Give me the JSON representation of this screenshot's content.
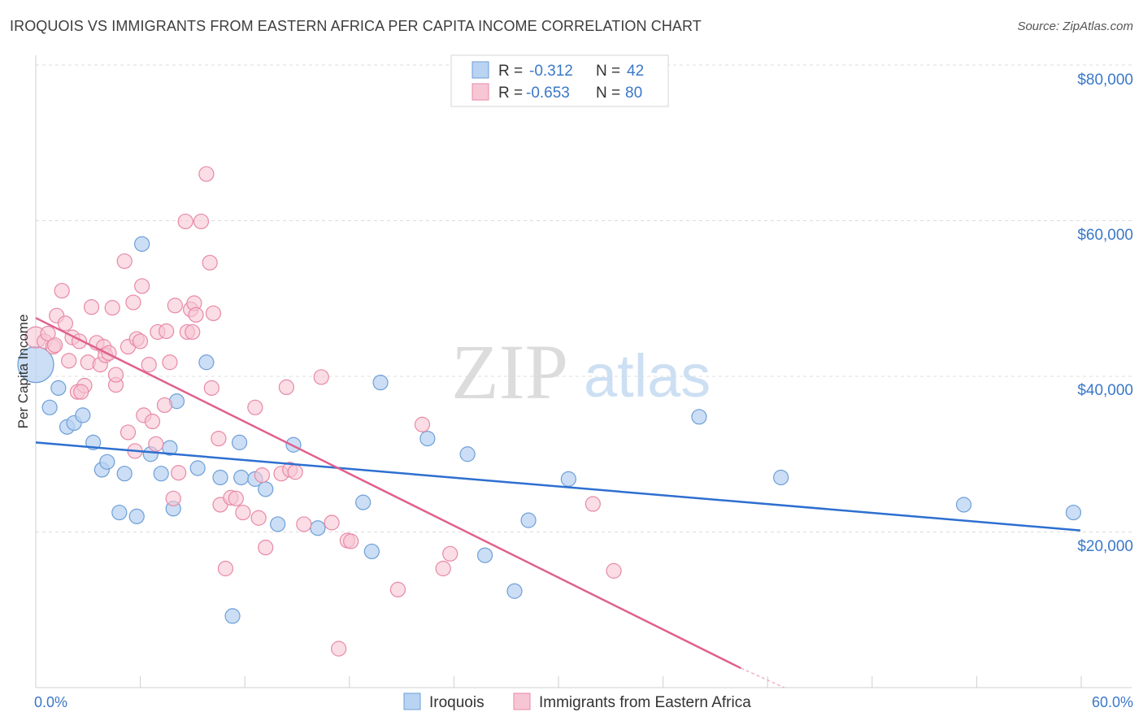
{
  "title": "IROQUOIS VS IMMIGRANTS FROM EASTERN AFRICA PER CAPITA INCOME CORRELATION CHART",
  "source": "Source: ZipAtlas.com",
  "watermark": {
    "zip": "ZIP",
    "atlas": "atlas"
  },
  "colors": {
    "blue_fill": "#b9d3f2",
    "blue_stroke": "#6e9fd8",
    "blue_line": "#2d6fd0",
    "pink_fill": "#f7c6d4",
    "pink_stroke": "#e889a7",
    "pink_line": "#e0608e",
    "axis_label": "#3a78c8",
    "grid": "#dcdcdc"
  },
  "legend": {
    "rows": [
      {
        "r_label": "R =",
        "r_value": "-0.312",
        "n_label": "N =",
        "n_value": "42"
      },
      {
        "r_label": "R =",
        "r_value": "-0.653",
        "n_label": "N =",
        "n_value": "80"
      }
    ]
  },
  "chart_data": {
    "type": "scatter",
    "xlabel": "",
    "ylabel": "Per Capita Income",
    "x_tick_labels": [
      "0.0%",
      "60.0%"
    ],
    "y_tick_labels": [
      "$20,000",
      "$40,000",
      "$60,000",
      "$80,000"
    ],
    "xlim": [
      0,
      62.5
    ],
    "ylim": [
      0,
      80000
    ],
    "grid": "horizontal dashed",
    "legend_placement": "top-center",
    "series": [
      {
        "name": "Iroquois",
        "r": -0.312,
        "n": 42,
        "trend": [
          [
            0,
            31500
          ],
          [
            60,
            20200
          ]
        ],
        "points": [
          [
            0.0,
            41500
          ],
          [
            0.8,
            36000
          ],
          [
            1.3,
            38500
          ],
          [
            1.8,
            33500
          ],
          [
            2.2,
            34000
          ],
          [
            2.7,
            35000
          ],
          [
            3.3,
            31500
          ],
          [
            3.8,
            28000
          ],
          [
            4.1,
            29000
          ],
          [
            4.8,
            22500
          ],
          [
            5.1,
            27500
          ],
          [
            5.8,
            22000
          ],
          [
            6.1,
            57000
          ],
          [
            6.6,
            30000
          ],
          [
            7.2,
            27500
          ],
          [
            7.9,
            23000
          ],
          [
            8.1,
            36800
          ],
          [
            7.7,
            30800
          ],
          [
            9.3,
            28200
          ],
          [
            9.8,
            41800
          ],
          [
            10.6,
            27000
          ],
          [
            11.3,
            9200
          ],
          [
            11.7,
            31500
          ],
          [
            11.8,
            27000
          ],
          [
            12.6,
            26800
          ],
          [
            13.2,
            25500
          ],
          [
            13.9,
            21000
          ],
          [
            14.8,
            31200
          ],
          [
            16.2,
            20500
          ],
          [
            18.8,
            23800
          ],
          [
            19.3,
            17500
          ],
          [
            22.5,
            32000
          ],
          [
            24.8,
            30000
          ],
          [
            25.8,
            17000
          ],
          [
            27.5,
            12400
          ],
          [
            28.3,
            21500
          ],
          [
            30.6,
            26800
          ],
          [
            38.1,
            34800
          ],
          [
            42.8,
            27000
          ],
          [
            53.3,
            23500
          ],
          [
            59.6,
            22500
          ],
          [
            19.8,
            39200
          ]
        ]
      },
      {
        "name": "Immigrants from Eastern Africa",
        "r": -0.653,
        "n": 80,
        "trend": [
          [
            0,
            47500
          ],
          [
            40.5,
            2500
          ]
        ],
        "trend_dashed": [
          [
            40.5,
            2500
          ],
          [
            43,
            0
          ]
        ],
        "points": [
          [
            0.0,
            45000
          ],
          [
            0.5,
            44500
          ],
          [
            0.7,
            45500
          ],
          [
            1.0,
            43800
          ],
          [
            1.2,
            47800
          ],
          [
            1.5,
            51000
          ],
          [
            1.7,
            46800
          ],
          [
            1.9,
            42000
          ],
          [
            2.1,
            45000
          ],
          [
            2.4,
            38000
          ],
          [
            2.5,
            44500
          ],
          [
            2.8,
            38800
          ],
          [
            3.0,
            41800
          ],
          [
            3.2,
            48900
          ],
          [
            3.5,
            44300
          ],
          [
            3.7,
            41500
          ],
          [
            3.9,
            43800
          ],
          [
            4.0,
            42700
          ],
          [
            4.4,
            48800
          ],
          [
            4.6,
            38900
          ],
          [
            4.6,
            40200
          ],
          [
            5.1,
            54800
          ],
          [
            5.3,
            43800
          ],
          [
            5.3,
            32800
          ],
          [
            5.6,
            49500
          ],
          [
            5.7,
            30400
          ],
          [
            5.8,
            44800
          ],
          [
            6.1,
            51600
          ],
          [
            6.2,
            35000
          ],
          [
            6.5,
            41500
          ],
          [
            6.7,
            34200
          ],
          [
            6.9,
            31300
          ],
          [
            7.0,
            45700
          ],
          [
            7.4,
            36300
          ],
          [
            7.5,
            45800
          ],
          [
            7.7,
            41800
          ],
          [
            7.9,
            24300
          ],
          [
            8.0,
            49100
          ],
          [
            8.2,
            27600
          ],
          [
            8.6,
            59900
          ],
          [
            8.7,
            45700
          ],
          [
            8.9,
            48600
          ],
          [
            9.1,
            49400
          ],
          [
            9.2,
            47900
          ],
          [
            9.5,
            59900
          ],
          [
            9.8,
            66000
          ],
          [
            10.0,
            54600
          ],
          [
            10.1,
            38500
          ],
          [
            10.2,
            48100
          ],
          [
            10.5,
            32000
          ],
          [
            10.6,
            23500
          ],
          [
            10.9,
            15300
          ],
          [
            11.2,
            24400
          ],
          [
            11.9,
            22500
          ],
          [
            12.6,
            36000
          ],
          [
            12.8,
            21800
          ],
          [
            13.0,
            27300
          ],
          [
            13.2,
            18000
          ],
          [
            14.1,
            27500
          ],
          [
            14.4,
            38600
          ],
          [
            14.6,
            28000
          ],
          [
            15.4,
            21000
          ],
          [
            16.4,
            39900
          ],
          [
            17.0,
            21200
          ],
          [
            17.4,
            5000
          ],
          [
            17.9,
            18900
          ],
          [
            18.1,
            18800
          ],
          [
            20.8,
            12600
          ],
          [
            22.2,
            33800
          ],
          [
            23.4,
            15300
          ],
          [
            23.8,
            17200
          ],
          [
            32.0,
            23600
          ],
          [
            33.2,
            15000
          ],
          [
            4.2,
            43000
          ],
          [
            6.0,
            44500
          ],
          [
            2.6,
            38000
          ],
          [
            1.1,
            44000
          ],
          [
            9.0,
            45700
          ],
          [
            11.5,
            24300
          ],
          [
            14.9,
            27700
          ]
        ]
      }
    ]
  }
}
